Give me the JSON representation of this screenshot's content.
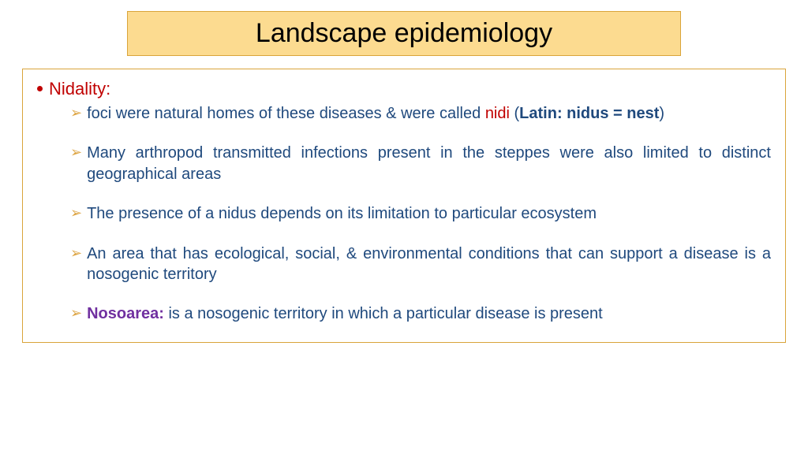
{
  "colors": {
    "title_bg": "#fcdb90",
    "title_border": "#d9a43b",
    "title_text": "#000000",
    "box_border": "#d9a43b",
    "bullet_dot": "#c00000",
    "nidality": "#c00000",
    "body_text": "#1f497d",
    "chevron": "#dda544",
    "nidi": "#c00000",
    "nosoarea": "#7030a0"
  },
  "title": "Landscape epidemiology",
  "section_label": "Nidality:",
  "items": [
    {
      "segments": [
        {
          "text": "foci were natural homes of these diseases & were called ",
          "color": "body_text"
        },
        {
          "text": "nidi",
          "color": "nidi"
        },
        {
          "text": " (",
          "color": "body_text"
        },
        {
          "text": "Latin: nidus = nest",
          "color": "body_text",
          "bold": true
        },
        {
          "text": ")",
          "color": "body_text"
        }
      ]
    },
    {
      "segments": [
        {
          "text": "Many arthropod transmitted infections present in the steppes were also limited to distinct geographical areas",
          "color": "body_text"
        }
      ]
    },
    {
      "segments": [
        {
          "text": "The presence of a nidus depends on its limitation to particular ecosystem",
          "color": "body_text"
        }
      ]
    },
    {
      "segments": [
        {
          "text": "An area that has ecological, social, &  environmental conditions that can support a disease is a nosogenic territory",
          "color": "body_text"
        }
      ]
    },
    {
      "segments": [
        {
          "text": "Nosoarea:",
          "color": "nosoarea",
          "bold": true
        },
        {
          "text": "  is a nosogenic territory in which a particular disease is present",
          "color": "body_text"
        }
      ]
    }
  ]
}
